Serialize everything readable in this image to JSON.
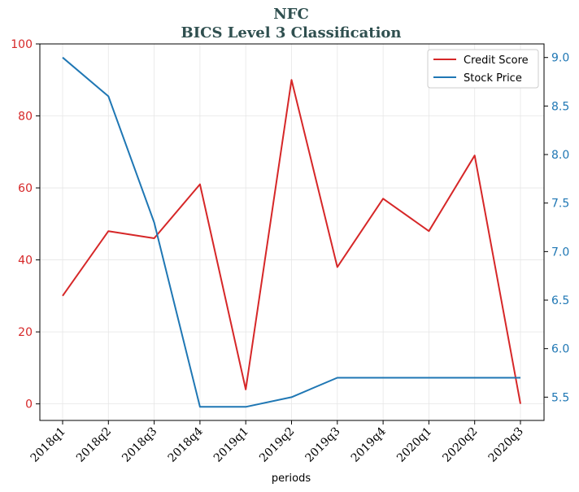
{
  "chart_data": {
    "type": "line",
    "title": "NFC",
    "subtitle": "BICS Level 3 Classification",
    "xlabel": "periods",
    "categories": [
      "2018q1",
      "2018q2",
      "2018q3",
      "2018q4",
      "2019q1",
      "2019q2",
      "2019q3",
      "2019q4",
      "2020q1",
      "2020q2",
      "2020q3"
    ],
    "grid": true,
    "legend_position": "top-right",
    "left_axis": {
      "ylim": [
        -4.6,
        100
      ],
      "ticks": [
        0,
        20,
        40,
        60,
        80,
        100
      ],
      "tick_labels": [
        "0",
        "20",
        "40",
        "60",
        "80",
        "100"
      ],
      "color": "#d62728"
    },
    "right_axis": {
      "ylim": [
        5.26,
        9.14
      ],
      "ticks": [
        5.5,
        6.0,
        6.5,
        7.0,
        7.5,
        8.0,
        8.5,
        9.0
      ],
      "tick_labels": [
        "5.5",
        "6.0",
        "6.5",
        "7.0",
        "7.5",
        "8.0",
        "8.5",
        "9.0"
      ],
      "color": "#1f77b4"
    },
    "series": [
      {
        "name": "Credit Score",
        "axis": "left",
        "color": "#d62728",
        "values": [
          30,
          48,
          46,
          61,
          4,
          90,
          38,
          57,
          48,
          69,
          0
        ]
      },
      {
        "name": "Stock Price",
        "axis": "right",
        "color": "#1f77b4",
        "values": [
          9.0,
          8.6,
          7.3,
          5.4,
          5.4,
          5.5,
          5.7,
          5.7,
          5.7,
          5.7,
          5.7
        ]
      }
    ]
  }
}
